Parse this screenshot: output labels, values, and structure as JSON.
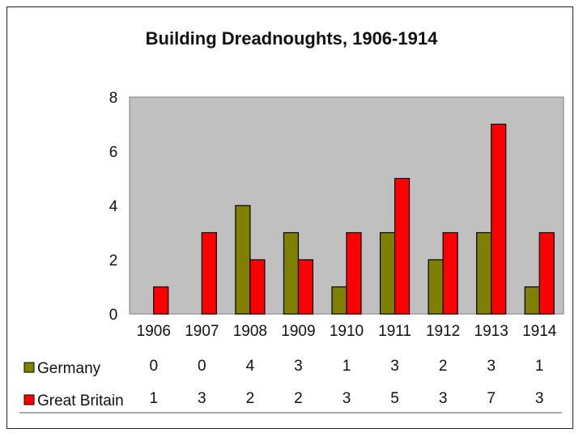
{
  "chart_data": {
    "type": "bar",
    "title": "Building Dreadnoughts, 1906-1914",
    "xlabel": "",
    "ylabel": "",
    "categories": [
      "1906",
      "1907",
      "1908",
      "1909",
      "1910",
      "1911",
      "1912",
      "1913",
      "1914"
    ],
    "series": [
      {
        "name": "Germany",
        "color": "#808000",
        "values": [
          0,
          0,
          4,
          3,
          1,
          3,
          2,
          3,
          1
        ]
      },
      {
        "name": "Great Britain",
        "color": "#ff0000",
        "values": [
          1,
          3,
          2,
          2,
          3,
          5,
          3,
          7,
          3
        ]
      }
    ],
    "ylim": [
      0,
      8
    ],
    "yticks": [
      0,
      2,
      4,
      6,
      8
    ],
    "plot_background": "#c0c0c0",
    "grid": false,
    "legend": "data table below chart"
  }
}
